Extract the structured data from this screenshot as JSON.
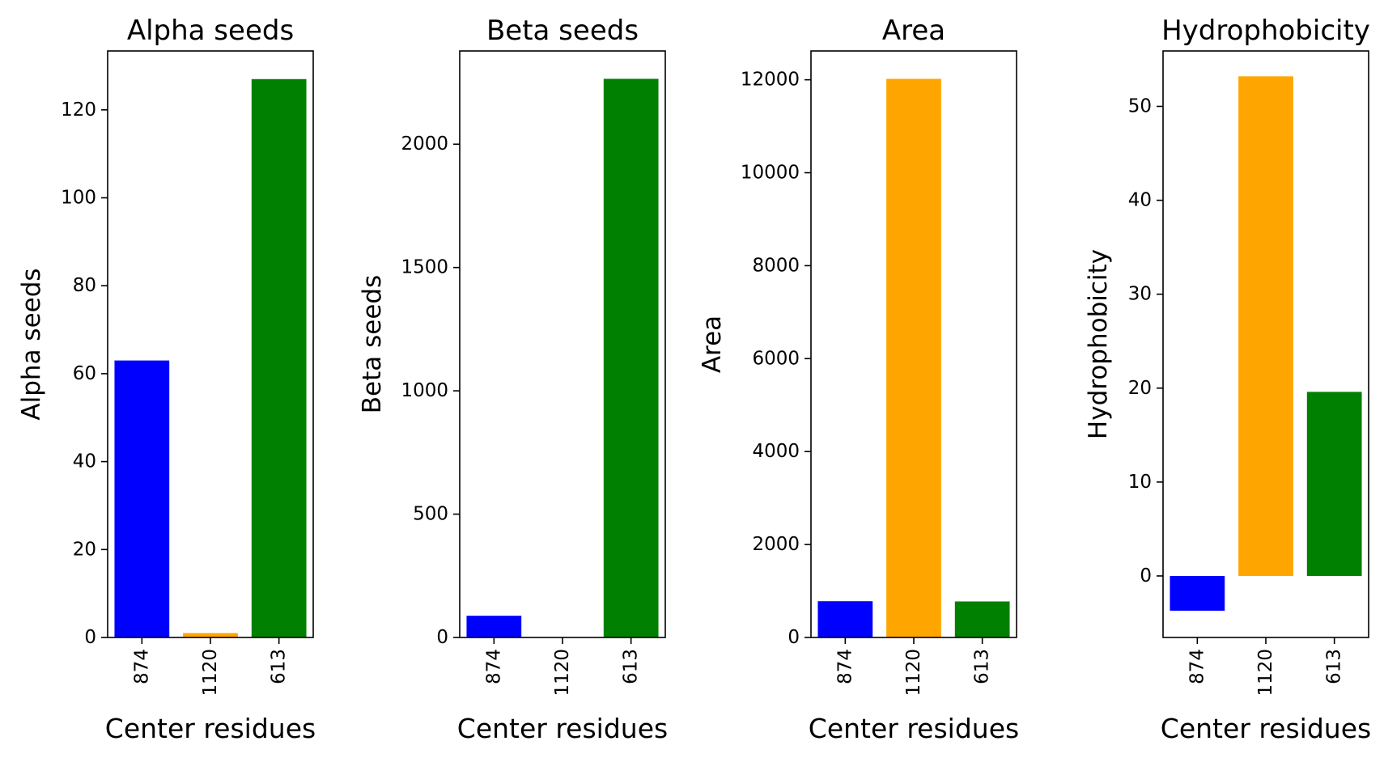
{
  "chart_data": [
    {
      "type": "bar",
      "title": "Alpha seeds",
      "xlabel": "Center residues",
      "ylabel": "Alpha seeds",
      "categories": [
        "874",
        "1120",
        "613"
      ],
      "values": [
        63,
        1,
        127
      ],
      "colors": [
        "#0000ff",
        "#ffa500",
        "#008000"
      ],
      "ylim": [
        0,
        133.4
      ],
      "yticks": [
        0,
        20,
        40,
        60,
        80,
        100,
        120
      ],
      "grid": false
    },
    {
      "type": "bar",
      "title": "Beta seeds",
      "xlabel": "Center residues",
      "ylabel": "Beta seeds",
      "categories": [
        "874",
        "1120",
        "613"
      ],
      "values": [
        88,
        0,
        2265
      ],
      "colors": [
        "#0000ff",
        "#ffa500",
        "#008000"
      ],
      "ylim": [
        0,
        2378
      ],
      "yticks": [
        0,
        500,
        1000,
        1500,
        2000
      ],
      "grid": false
    },
    {
      "type": "bar",
      "title": "Area",
      "xlabel": "Center residues",
      "ylabel": "Area",
      "categories": [
        "874",
        "1120",
        "613"
      ],
      "values": [
        780,
        12020,
        775
      ],
      "colors": [
        "#0000ff",
        "#ffa500",
        "#008000"
      ],
      "ylim": [
        0,
        12620
      ],
      "yticks": [
        0,
        2000,
        4000,
        6000,
        8000,
        10000,
        12000
      ],
      "grid": false
    },
    {
      "type": "bar",
      "title": "Hydrophobicity",
      "xlabel": "Center residues",
      "ylabel": "Hydrophobicity",
      "categories": [
        "874",
        "1120",
        "613"
      ],
      "values": [
        -3.7,
        53.2,
        19.6
      ],
      "colors": [
        "#0000ff",
        "#ffa500",
        "#008000"
      ],
      "ylim": [
        -6.55,
        55.9
      ],
      "yticks": [
        0,
        10,
        20,
        30,
        40,
        50
      ],
      "grid": false
    }
  ]
}
